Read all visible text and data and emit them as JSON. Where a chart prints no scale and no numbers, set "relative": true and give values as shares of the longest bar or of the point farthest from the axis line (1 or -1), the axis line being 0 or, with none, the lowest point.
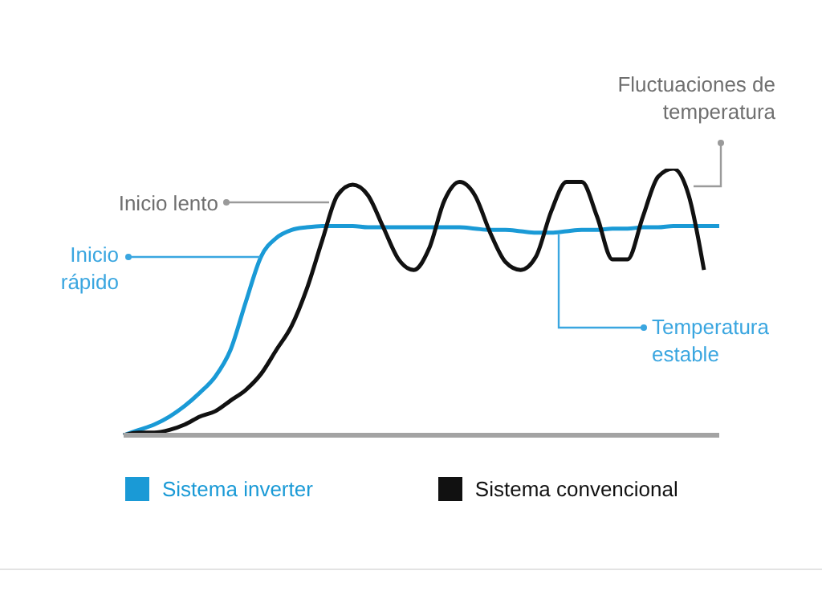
{
  "chart_data": {
    "type": "line",
    "relative": true,
    "categories": [
      null,
      null,
      null,
      null,
      null,
      null,
      null,
      null,
      null,
      null,
      null,
      null,
      null,
      null,
      null,
      null,
      null,
      null,
      null,
      null,
      null,
      null,
      null,
      null,
      null,
      null,
      null,
      null,
      null,
      null,
      null,
      null,
      null,
      null,
      null,
      null,
      null,
      null,
      null,
      null
    ],
    "series": [
      {
        "name": "Sistema inverter",
        "color": "#1a9ad6",
        "values": [
          0,
          0.02,
          0.04,
          0.07,
          0.11,
          0.16,
          0.22,
          0.32,
          0.5,
          0.67,
          0.74,
          0.77,
          0.78,
          0.785,
          0.785,
          0.785,
          0.78,
          0.78,
          0.78,
          0.78,
          0.78,
          0.78,
          0.78,
          0.775,
          0.77,
          0.77,
          0.765,
          0.76,
          0.76,
          0.765,
          0.77,
          0.77,
          0.775,
          0.775,
          0.78,
          0.78,
          0.785,
          0.785,
          0.785,
          0.785
        ]
      },
      {
        "name": "Sistema convencional",
        "color": "#111111",
        "values": [
          0,
          0.01,
          0.01,
          0.02,
          0.04,
          0.07,
          0.09,
          0.13,
          0.17,
          0.23,
          0.32,
          0.41,
          0.55,
          0.73,
          0.9,
          0.94,
          0.9,
          0.78,
          0.66,
          0.62,
          0.7,
          0.88,
          0.95,
          0.9,
          0.76,
          0.65,
          0.62,
          0.67,
          0.84,
          0.95,
          0.95,
          0.82,
          0.66,
          0.66,
          0.82,
          0.97,
          1,
          0.9,
          0.62,
          null
        ]
      }
    ],
    "annotations": [
      "Fluctuaciones de temperatura",
      "Inicio lento",
      "Inicio rápido",
      "Temperatura estable"
    ],
    "legend": "bottom",
    "grid": false,
    "marker": "none",
    "line_style": "solid"
  }
}
